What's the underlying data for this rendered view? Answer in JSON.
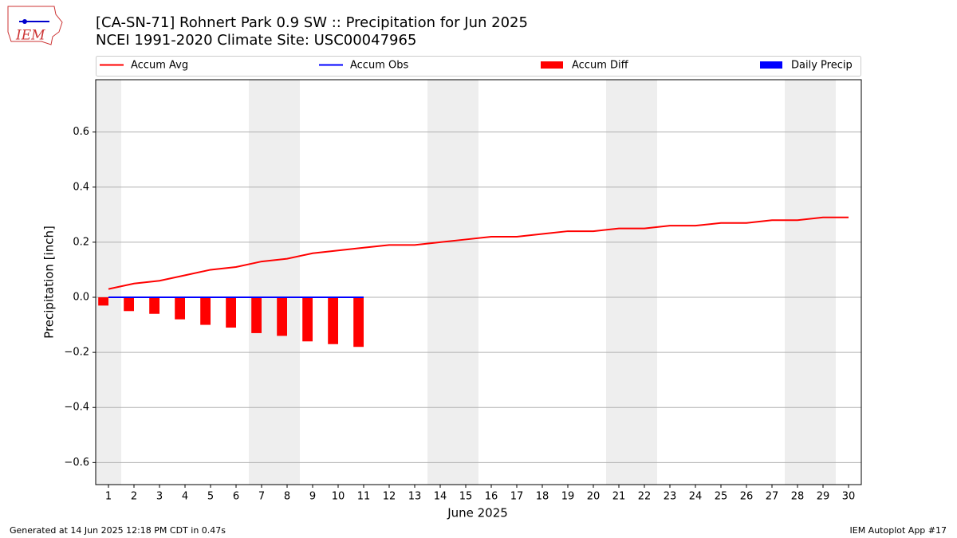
{
  "chart_data": {
    "type": "combo",
    "title": "[CA-SN-71] Rohnert Park 0.9 SW :: Precipitation for Jun 2025",
    "subtitle": "NCEI 1991-2020 Climate Site: USC00047965",
    "logo_text": "IEM",
    "x_label": "June 2025",
    "y_label": "Precipitation [inch]",
    "x": [
      1,
      2,
      3,
      4,
      5,
      6,
      7,
      8,
      9,
      10,
      11,
      12,
      13,
      14,
      15,
      16,
      17,
      18,
      19,
      20,
      21,
      22,
      23,
      24,
      25,
      26,
      27,
      28,
      29,
      30
    ],
    "xlim": [
      0.5,
      30.5
    ],
    "xticks": [
      1,
      2,
      3,
      4,
      5,
      6,
      7,
      8,
      9,
      10,
      11,
      12,
      13,
      14,
      15,
      16,
      17,
      18,
      19,
      20,
      21,
      22,
      23,
      24,
      25,
      26,
      27,
      28,
      29,
      30
    ],
    "ylim": [
      -0.68,
      0.79
    ],
    "yticks": [
      {
        "value": -0.6,
        "label": "−0.6"
      },
      {
        "value": -0.4,
        "label": "−0.4"
      },
      {
        "value": -0.2,
        "label": "−0.2"
      },
      {
        "value": 0,
        "label": "0.0"
      },
      0.2,
      0.4,
      0.6
    ],
    "grid": true,
    "shaded_days": [
      1,
      7,
      8,
      14,
      15,
      21,
      22,
      28,
      29
    ],
    "shade_color": "#eeeeee",
    "series": [
      {
        "name": "Accum Avg",
        "type": "line",
        "color": "#ff0000",
        "values": [
          0.03,
          0.05,
          0.06,
          0.08,
          0.1,
          0.11,
          0.13,
          0.14,
          0.16,
          0.17,
          0.18,
          0.19,
          0.19,
          0.2,
          0.21,
          0.22,
          0.22,
          0.23,
          0.24,
          0.24,
          0.25,
          0.25,
          0.26,
          0.26,
          0.27,
          0.27,
          0.28,
          0.28,
          0.29,
          0.29
        ]
      },
      {
        "name": "Accum Obs",
        "type": "line",
        "color": "#0000ff",
        "values": [
          0,
          0,
          0,
          0,
          0,
          0,
          0,
          0,
          0,
          0,
          0,
          null,
          null,
          null,
          null,
          null,
          null,
          null,
          null,
          null,
          null,
          null,
          null,
          null,
          null,
          null,
          null,
          null,
          null,
          null
        ]
      },
      {
        "name": "Accum Diff",
        "type": "bar",
        "side": "left",
        "color": "#ff0000",
        "values": [
          -0.03,
          -0.05,
          -0.06,
          -0.08,
          -0.1,
          -0.11,
          -0.13,
          -0.14,
          -0.16,
          -0.17,
          -0.18,
          null,
          null,
          null,
          null,
          null,
          null,
          null,
          null,
          null,
          null,
          null,
          null,
          null,
          null,
          null,
          null,
          null,
          null,
          null
        ]
      },
      {
        "name": "Daily Precip",
        "type": "bar",
        "side": "right",
        "color": "#0000ff",
        "values": [
          0,
          0,
          0,
          0,
          0,
          0,
          0,
          0,
          0,
          0,
          0,
          null,
          null,
          null,
          null,
          null,
          null,
          null,
          null,
          null,
          null,
          null,
          null,
          null,
          null,
          null,
          null,
          null,
          null,
          null
        ]
      }
    ],
    "footer_left": "Generated at 14 Jun 2025 12:18 PM CDT in 0.47s",
    "footer_right": "IEM Autoplot App #17"
  }
}
